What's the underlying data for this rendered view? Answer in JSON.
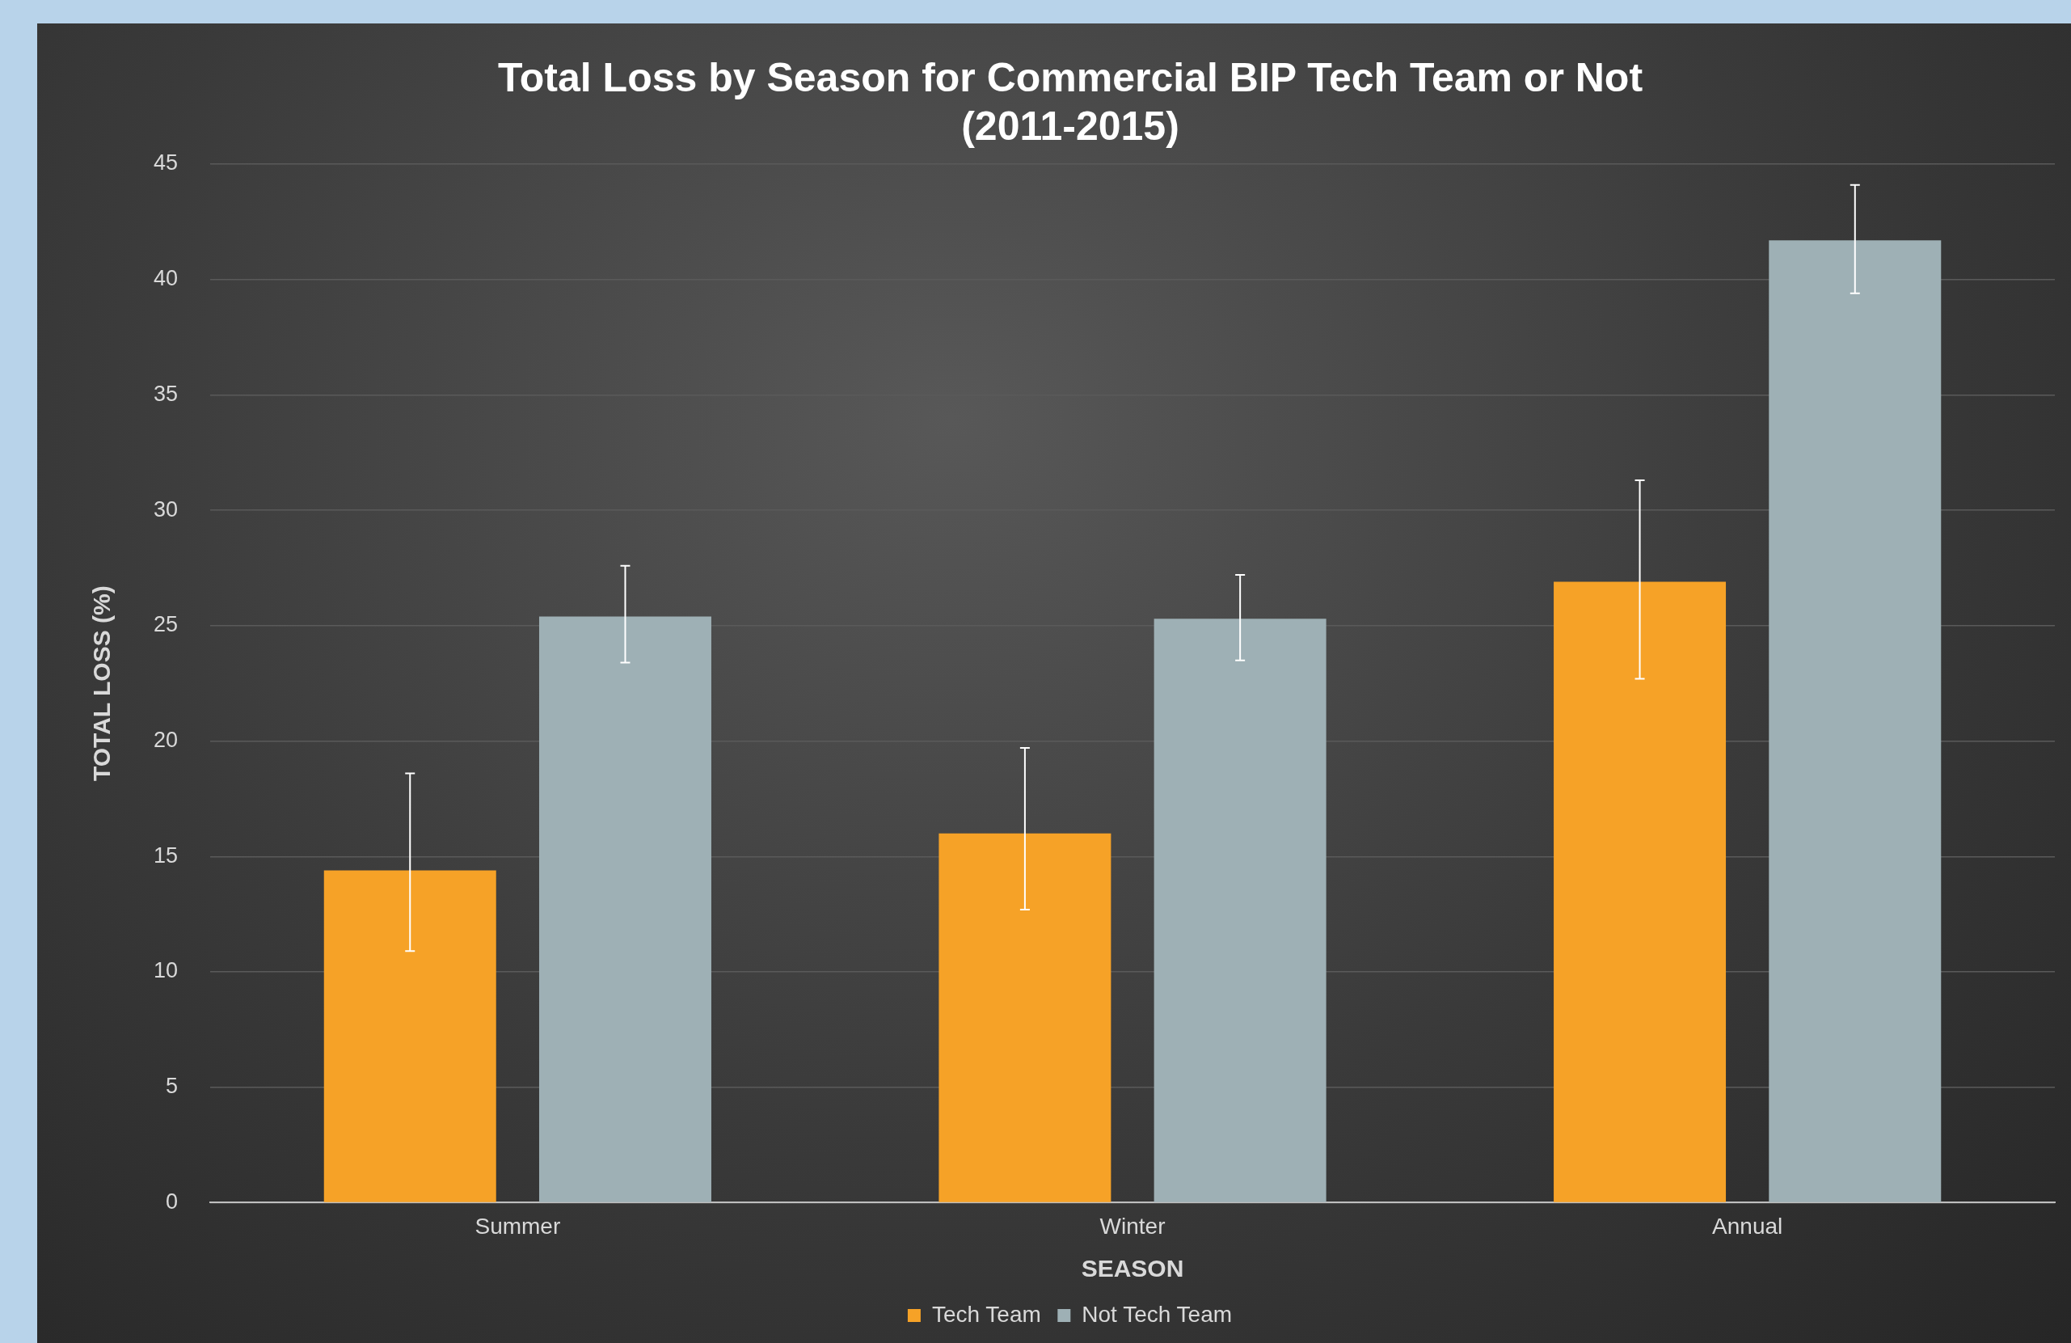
{
  "chart_data": {
    "type": "bar",
    "title": "Total Loss by Season for Commercial BIP Tech Team or Not\n(2011-2015)",
    "xlabel": "SEASON",
    "ylabel": "TOTAL LOSS (%)",
    "categories": [
      "Summer",
      "Winter",
      "Annual"
    ],
    "series": [
      {
        "name": "Tech Team",
        "color": "#f6a227",
        "values": [
          14.4,
          16.0,
          26.9
        ],
        "errors": [
          [
            10.9,
            18.6
          ],
          [
            12.7,
            19.7
          ],
          [
            22.7,
            31.3
          ]
        ]
      },
      {
        "name": "Not Tech Team",
        "color": "#9eb0b5",
        "values": [
          25.4,
          25.3,
          41.7
        ],
        "errors": [
          [
            23.4,
            27.6
          ],
          [
            23.5,
            27.2
          ],
          [
            39.4,
            44.1
          ]
        ]
      }
    ],
    "ylim": [
      0,
      45
    ],
    "yticks": [
      0,
      5,
      10,
      15,
      20,
      25,
      30,
      35,
      40,
      45
    ],
    "grid": "y",
    "legend": "bottom"
  }
}
